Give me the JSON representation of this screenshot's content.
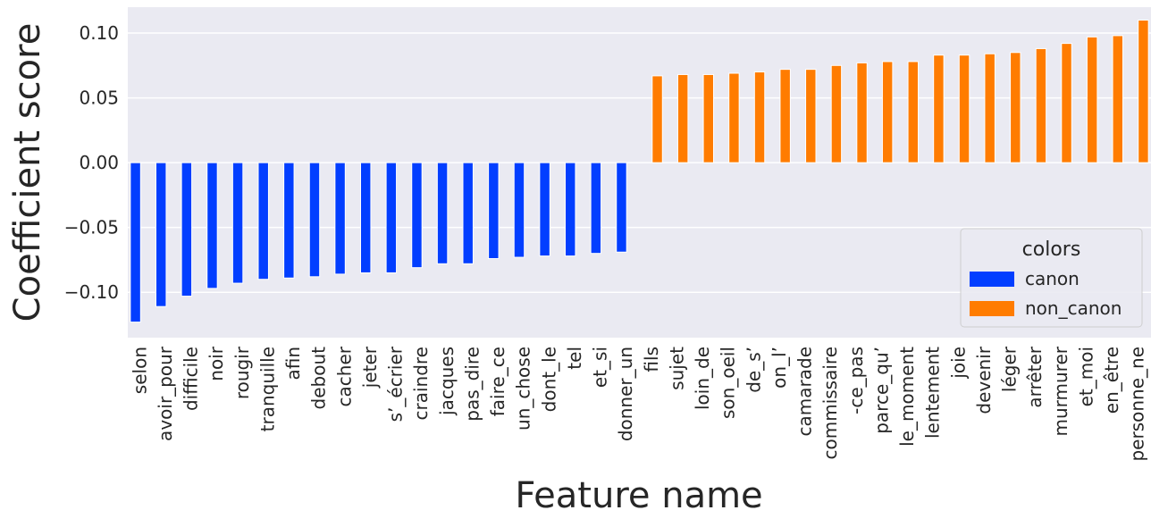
{
  "chart_data": {
    "type": "bar",
    "x_label": "Feature name",
    "y_label": "Coefficient score",
    "legend_title": "colors",
    "legend_position": "right",
    "grid": true,
    "categories": [
      "selon",
      "avoir_pour",
      "difficile",
      "noir",
      "rougir",
      "tranquille",
      "afin",
      "debout",
      "cacher",
      "jeter",
      "s’_écrier",
      "craindre",
      "jacques",
      "pas_dire",
      "faire_ce",
      "un_chose",
      "dont_le",
      "tel",
      "et_si",
      "donner_un",
      "fils",
      "sujet",
      "loin_de",
      "son_oeil",
      "de_s’",
      "on_l’",
      "camarade",
      "commissaire",
      "-ce_pas",
      "parce_qu’",
      "le_moment",
      "lentement",
      "joie",
      "devenir",
      "léger",
      "arrêter",
      "murmurer",
      "et_moi",
      "en_être",
      "personne_ne"
    ],
    "series": [
      {
        "name": "canon",
        "color": "#023eff",
        "values": [
          -0.123,
          -0.111,
          -0.103,
          -0.097,
          -0.093,
          -0.09,
          -0.089,
          -0.088,
          -0.086,
          -0.085,
          -0.085,
          -0.081,
          -0.078,
          -0.078,
          -0.074,
          -0.073,
          -0.072,
          -0.072,
          -0.07,
          -0.069,
          null,
          null,
          null,
          null,
          null,
          null,
          null,
          null,
          null,
          null,
          null,
          null,
          null,
          null,
          null,
          null,
          null,
          null,
          null,
          null
        ]
      },
      {
        "name": "non_canon",
        "color": "#ff7c00",
        "values": [
          null,
          null,
          null,
          null,
          null,
          null,
          null,
          null,
          null,
          null,
          null,
          null,
          null,
          null,
          null,
          null,
          null,
          null,
          null,
          null,
          0.067,
          0.068,
          0.068,
          0.069,
          0.07,
          0.072,
          0.072,
          0.075,
          0.077,
          0.078,
          0.078,
          0.083,
          0.083,
          0.084,
          0.085,
          0.088,
          0.092,
          0.097,
          0.098,
          0.11
        ]
      }
    ],
    "ylim": [
      -0.135,
      0.12
    ],
    "yticks": [
      {
        "value": -0.1,
        "label": "−0.10"
      },
      {
        "value": -0.05,
        "label": "−0.05"
      },
      {
        "value": 0,
        "label": "0.00"
      },
      {
        "value": 0.05,
        "label": "0.05"
      },
      {
        "value": 0.1,
        "label": "0.10"
      }
    ]
  }
}
